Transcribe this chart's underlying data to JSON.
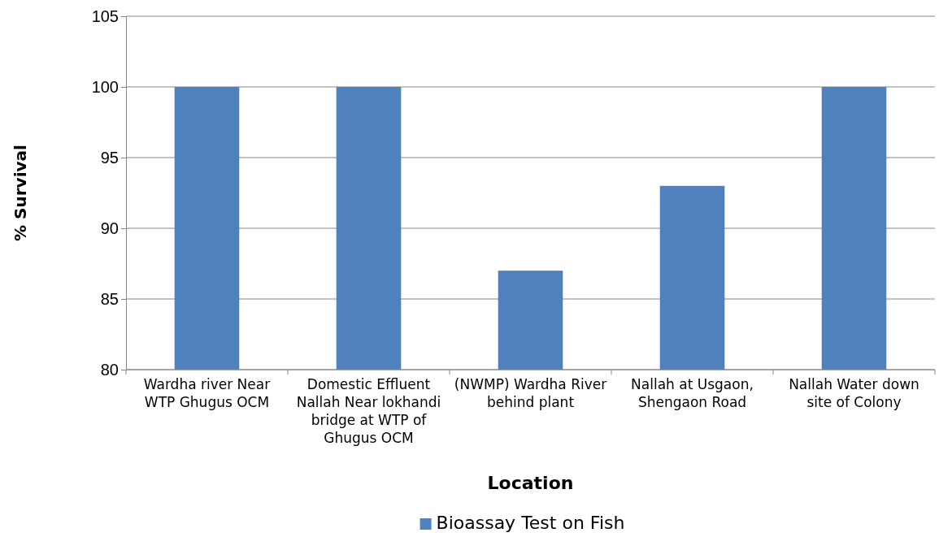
{
  "chart_data": {
    "type": "bar",
    "xlabel": "Location",
    "ylabel": "% Survival",
    "categories": [
      "Wardha river Near WTP Ghugus OCM",
      "Domestic Effluent Nallah Near lokhandi bridge at WTP of Ghugus OCM",
      "(NWMP) Wardha River behind plant",
      "Nallah at Usgaon, Shengaon Road",
      "Nallah Water down site of Colony"
    ],
    "series": [
      {
        "name": "Bioassay Test on Fish",
        "color": "#4f81bd",
        "values": [
          100,
          100,
          87,
          93,
          100
        ]
      }
    ],
    "ylim": [
      80,
      105
    ],
    "yticks": [
      80,
      85,
      90,
      95,
      100,
      105
    ],
    "grid": "y",
    "legend": "bottom"
  }
}
